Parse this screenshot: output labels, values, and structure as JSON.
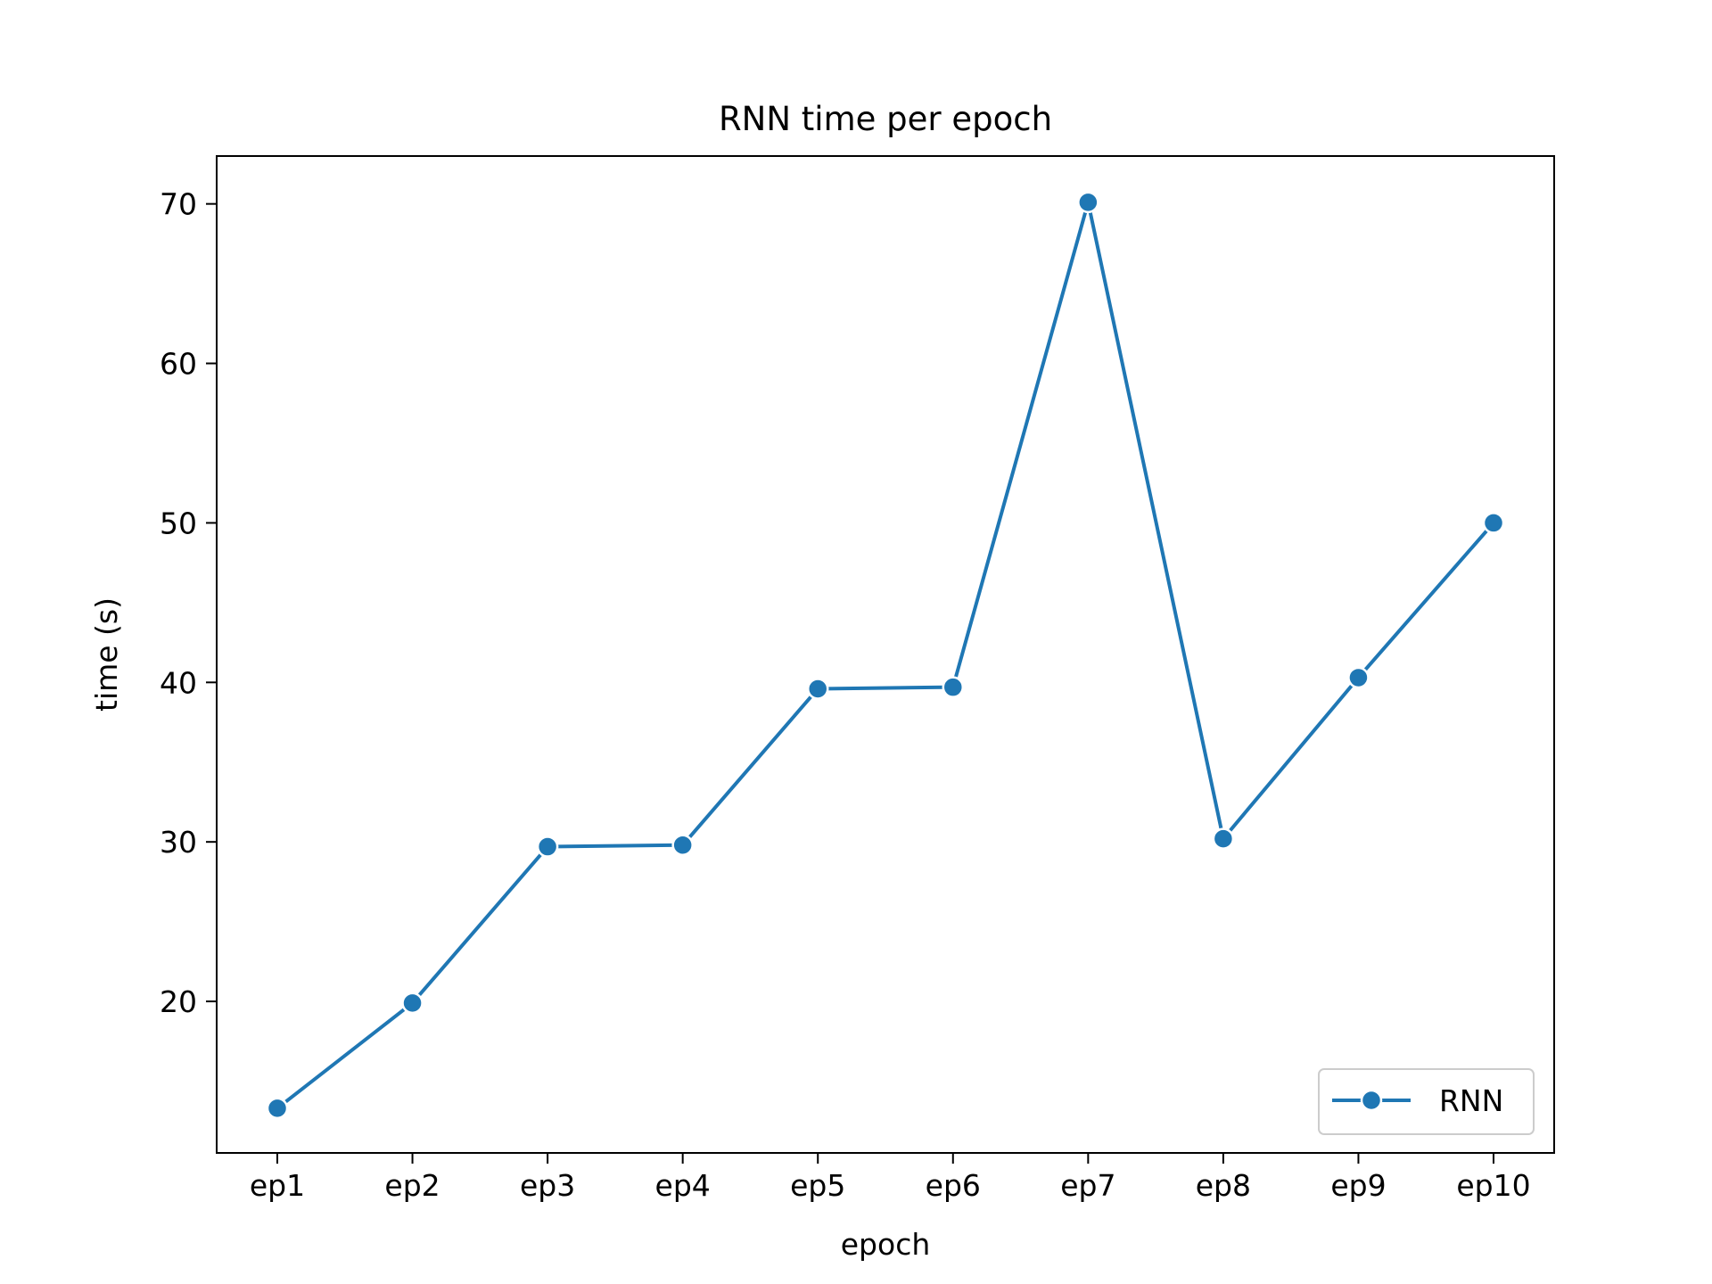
{
  "chart_data": {
    "type": "line",
    "title": "RNN time per epoch",
    "xlabel": "epoch",
    "ylabel": "time (s)",
    "categories": [
      "ep1",
      "ep2",
      "ep3",
      "ep4",
      "ep5",
      "ep6",
      "ep7",
      "ep8",
      "ep9",
      "ep10"
    ],
    "yticks": [
      20,
      30,
      40,
      50,
      60,
      70
    ],
    "ylim": [
      10.5,
      73
    ],
    "series": [
      {
        "name": "RNN",
        "color": "#1f77b4",
        "marker": "circle",
        "values": [
          13.3,
          19.9,
          29.7,
          29.8,
          39.6,
          39.7,
          70.1,
          30.2,
          40.3,
          50.0
        ]
      }
    ],
    "grid": false,
    "legend_position": "bottom-right"
  }
}
